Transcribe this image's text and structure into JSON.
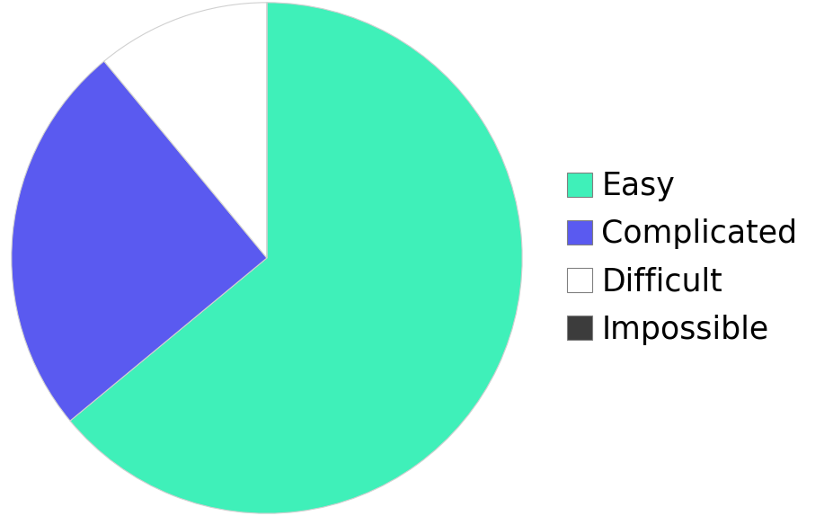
{
  "chart_data": {
    "type": "pie",
    "categories": [
      "Easy",
      "Complicated",
      "Difficult",
      "Impossible"
    ],
    "values": [
      64,
      25,
      11,
      0
    ],
    "colors": [
      "#3ff0b9",
      "#5a5af0",
      "#ffffff",
      "#3c3c3c"
    ],
    "legend": "right"
  }
}
